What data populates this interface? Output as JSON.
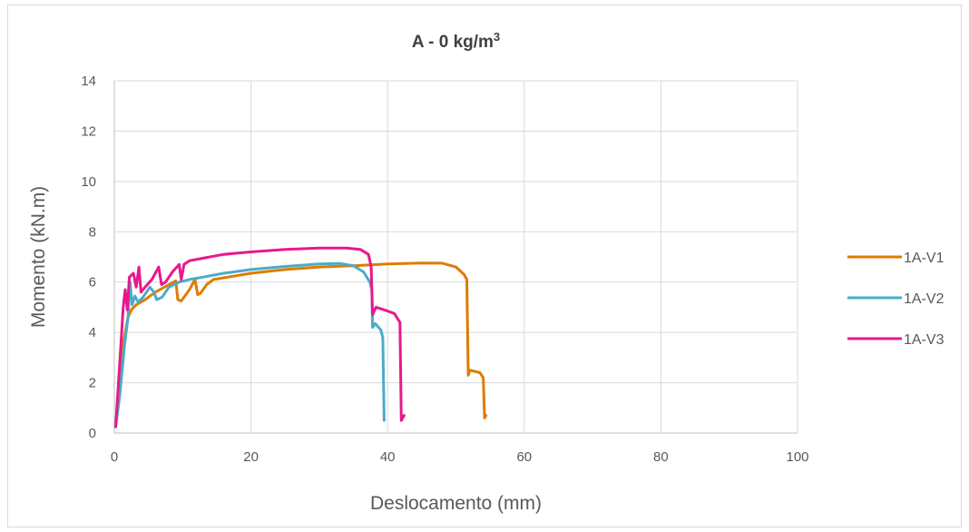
{
  "chart_data": {
    "type": "line",
    "title": "A - 0 kg/m",
    "title_superscript": "3",
    "xlabel": "Deslocamento (mm)",
    "ylabel": "Momento (kN.m)",
    "xlim": [
      0,
      100
    ],
    "ylim": [
      0,
      14
    ],
    "xticks": [
      0,
      20,
      40,
      60,
      80,
      100
    ],
    "yticks": [
      0,
      2,
      4,
      6,
      8,
      10,
      12,
      14
    ],
    "grid": true,
    "legend_position": "right",
    "series": [
      {
        "name": "1A-V1",
        "color": "#E07B00",
        "points": [
          [
            0.2,
            0.25
          ],
          [
            0.8,
            2.0
          ],
          [
            1.4,
            3.7
          ],
          [
            2.0,
            4.6
          ],
          [
            2.5,
            4.9
          ],
          [
            3.2,
            5.1
          ],
          [
            4.5,
            5.3
          ],
          [
            6.0,
            5.6
          ],
          [
            8.0,
            5.9
          ],
          [
            9.0,
            6.05
          ],
          [
            9.3,
            5.3
          ],
          [
            9.8,
            5.25
          ],
          [
            11.0,
            5.7
          ],
          [
            11.8,
            6.1
          ],
          [
            12.2,
            5.5
          ],
          [
            12.6,
            5.55
          ],
          [
            13.5,
            5.9
          ],
          [
            14.5,
            6.1
          ],
          [
            20,
            6.35
          ],
          [
            25,
            6.5
          ],
          [
            30,
            6.6
          ],
          [
            35,
            6.65
          ],
          [
            40,
            6.72
          ],
          [
            45,
            6.76
          ],
          [
            48,
            6.75
          ],
          [
            50,
            6.6
          ],
          [
            51.2,
            6.3
          ],
          [
            51.6,
            6.1
          ],
          [
            51.8,
            2.3
          ],
          [
            52.0,
            2.5
          ],
          [
            53.5,
            2.4
          ],
          [
            54.0,
            2.2
          ],
          [
            54.2,
            0.6
          ],
          [
            54.4,
            0.7
          ]
        ]
      },
      {
        "name": "1A-V2",
        "color": "#4BACC6",
        "points": [
          [
            0.2,
            0.25
          ],
          [
            0.8,
            1.5
          ],
          [
            1.5,
            3.5
          ],
          [
            2.0,
            4.6
          ],
          [
            2.3,
            6.0
          ],
          [
            2.6,
            5.1
          ],
          [
            3.0,
            5.45
          ],
          [
            3.5,
            5.2
          ],
          [
            4.2,
            5.4
          ],
          [
            5.2,
            5.8
          ],
          [
            5.8,
            5.6
          ],
          [
            6.2,
            5.3
          ],
          [
            7.0,
            5.4
          ],
          [
            8.0,
            5.8
          ],
          [
            9.5,
            6.0
          ],
          [
            11,
            6.1
          ],
          [
            13,
            6.2
          ],
          [
            16,
            6.35
          ],
          [
            20,
            6.5
          ],
          [
            25,
            6.62
          ],
          [
            30,
            6.72
          ],
          [
            33,
            6.74
          ],
          [
            35,
            6.65
          ],
          [
            36.5,
            6.4
          ],
          [
            37.4,
            6.0
          ],
          [
            37.7,
            5.7
          ],
          [
            37.8,
            4.2
          ],
          [
            38.2,
            4.35
          ],
          [
            39.0,
            4.1
          ],
          [
            39.3,
            3.8
          ],
          [
            39.5,
            0.5
          ]
        ]
      },
      {
        "name": "1A-V3",
        "color": "#E8188C",
        "points": [
          [
            0.2,
            0.25
          ],
          [
            0.8,
            2.8
          ],
          [
            1.3,
            5.0
          ],
          [
            1.6,
            5.7
          ],
          [
            1.9,
            4.9
          ],
          [
            2.2,
            6.2
          ],
          [
            2.8,
            6.35
          ],
          [
            3.2,
            5.8
          ],
          [
            3.6,
            6.6
          ],
          [
            3.9,
            5.6
          ],
          [
            4.5,
            5.8
          ],
          [
            5.5,
            6.1
          ],
          [
            6.5,
            6.6
          ],
          [
            6.9,
            5.9
          ],
          [
            7.5,
            6.0
          ],
          [
            8.5,
            6.4
          ],
          [
            9.5,
            6.7
          ],
          [
            9.8,
            6.1
          ],
          [
            10.2,
            6.7
          ],
          [
            11,
            6.85
          ],
          [
            13,
            6.95
          ],
          [
            16,
            7.1
          ],
          [
            20,
            7.2
          ],
          [
            25,
            7.3
          ],
          [
            30,
            7.35
          ],
          [
            34,
            7.35
          ],
          [
            36,
            7.3
          ],
          [
            37.2,
            7.1
          ],
          [
            37.6,
            6.6
          ],
          [
            37.8,
            4.7
          ],
          [
            38.3,
            5.0
          ],
          [
            40,
            4.85
          ],
          [
            41,
            4.75
          ],
          [
            41.8,
            4.4
          ],
          [
            42.0,
            0.5
          ],
          [
            42.4,
            0.7
          ]
        ]
      }
    ]
  }
}
